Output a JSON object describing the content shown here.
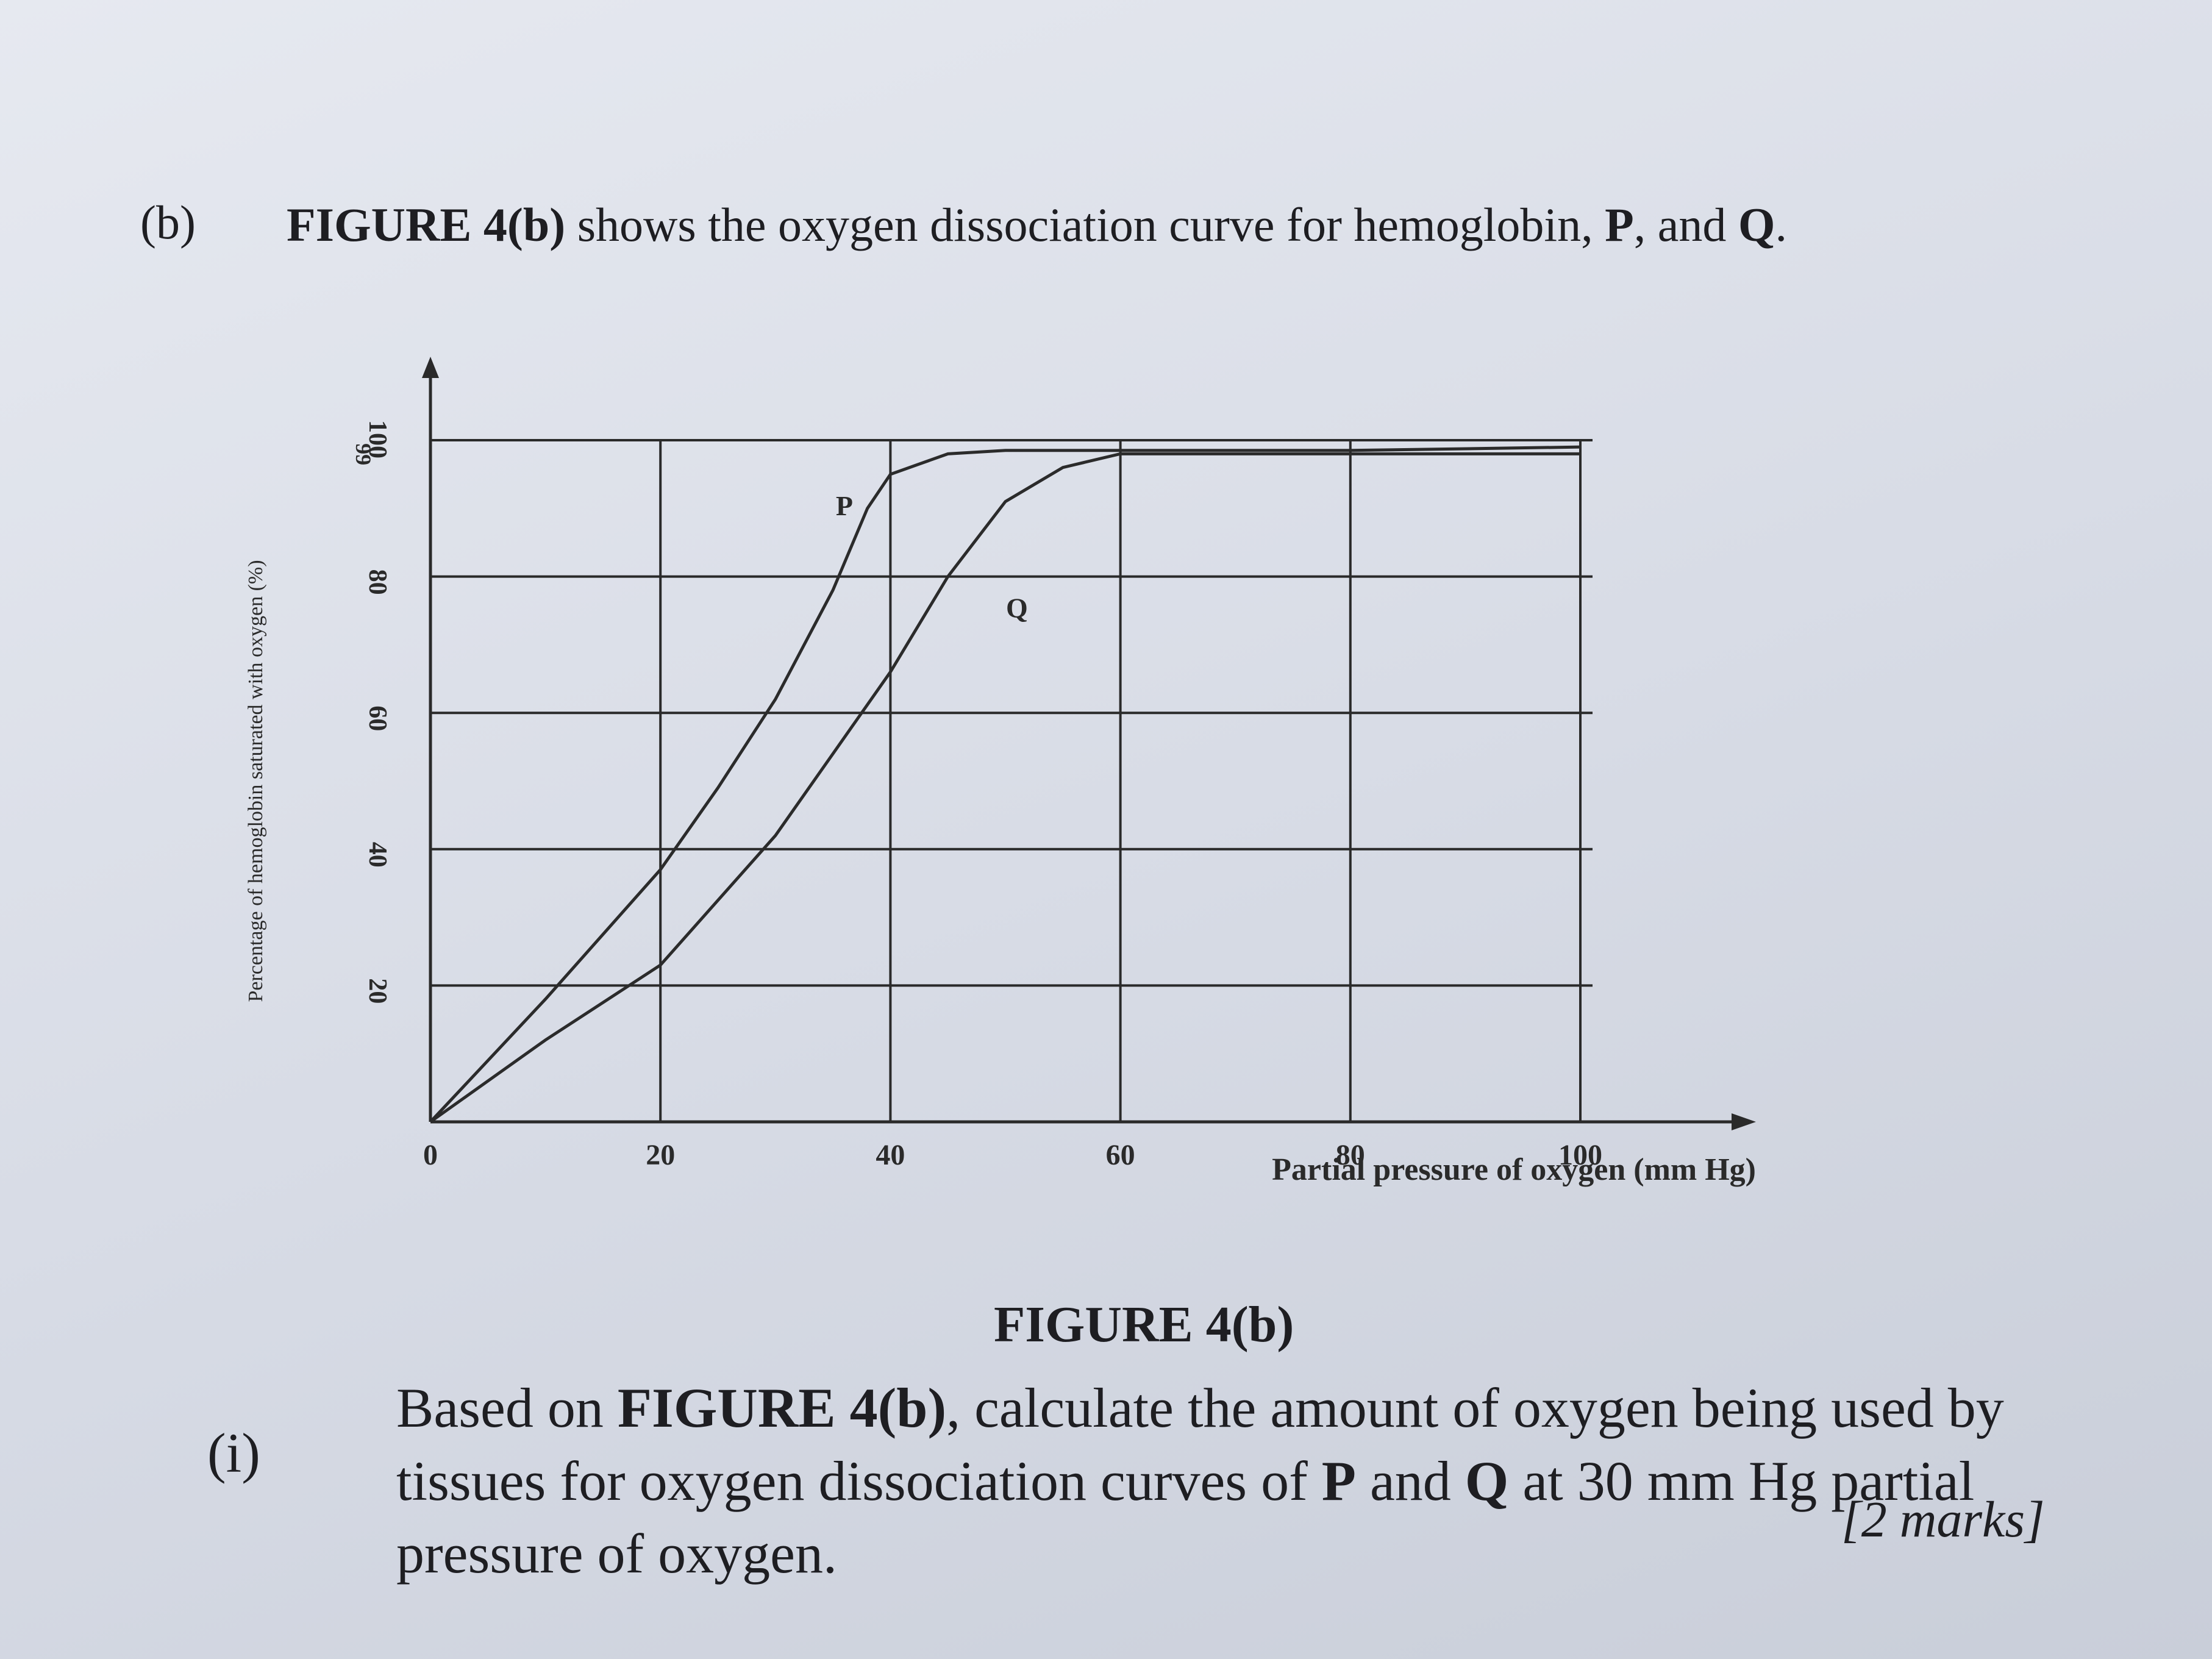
{
  "header": {
    "label": "(b)",
    "intro": [
      {
        "text": "FIGURE 4(b)",
        "bold": true
      },
      {
        "text": " shows the oxygen dissociation curve for hemoglobin, "
      },
      {
        "text": "P",
        "bold": true
      },
      {
        "text": ", and "
      },
      {
        "text": "Q",
        "bold": true
      },
      {
        "text": "."
      }
    ]
  },
  "chart_data": {
    "type": "line",
    "x_label": "Partial pressure of oxygen (mm Hg)",
    "y_label": "Percentage of hemoglobin saturated with oxygen (%)",
    "xlim": [
      0,
      100
    ],
    "xticks": [
      0,
      20,
      40,
      60,
      80,
      100
    ],
    "ylim": [
      0,
      100
    ],
    "yticks": [
      20,
      40,
      60,
      80,
      99,
      100
    ],
    "grid": true,
    "series": [
      {
        "name": "P",
        "color": "#2b2b2b",
        "x": [
          0,
          10,
          20,
          25,
          30,
          35,
          38,
          40,
          45,
          50,
          60,
          80,
          100
        ],
        "values": [
          0,
          18,
          37,
          49,
          62,
          78,
          90,
          95,
          98,
          98.5,
          98.5,
          98.5,
          99
        ]
      },
      {
        "name": "Q",
        "color": "#2b2b2b",
        "x": [
          0,
          10,
          20,
          30,
          35,
          40,
          45,
          50,
          55,
          60,
          80,
          100
        ],
        "values": [
          0,
          12,
          23,
          42,
          54,
          66,
          80,
          91,
          96,
          98,
          98,
          98
        ]
      }
    ]
  },
  "figure_caption": "FIGURE 4(b)",
  "question": {
    "label": "(i)",
    "text": [
      {
        "text": "Based on "
      },
      {
        "text": "FIGURE 4(b)",
        "bold": true
      },
      {
        "text": ", calculate the amount of oxygen being used by tissues for oxygen dissociation curves of "
      },
      {
        "text": "P",
        "bold": true
      },
      {
        "text": " and "
      },
      {
        "text": "Q",
        "bold": true
      },
      {
        "text": " at 30 mm Hg partial pressure of oxygen."
      }
    ],
    "marks": "[2 marks]"
  }
}
